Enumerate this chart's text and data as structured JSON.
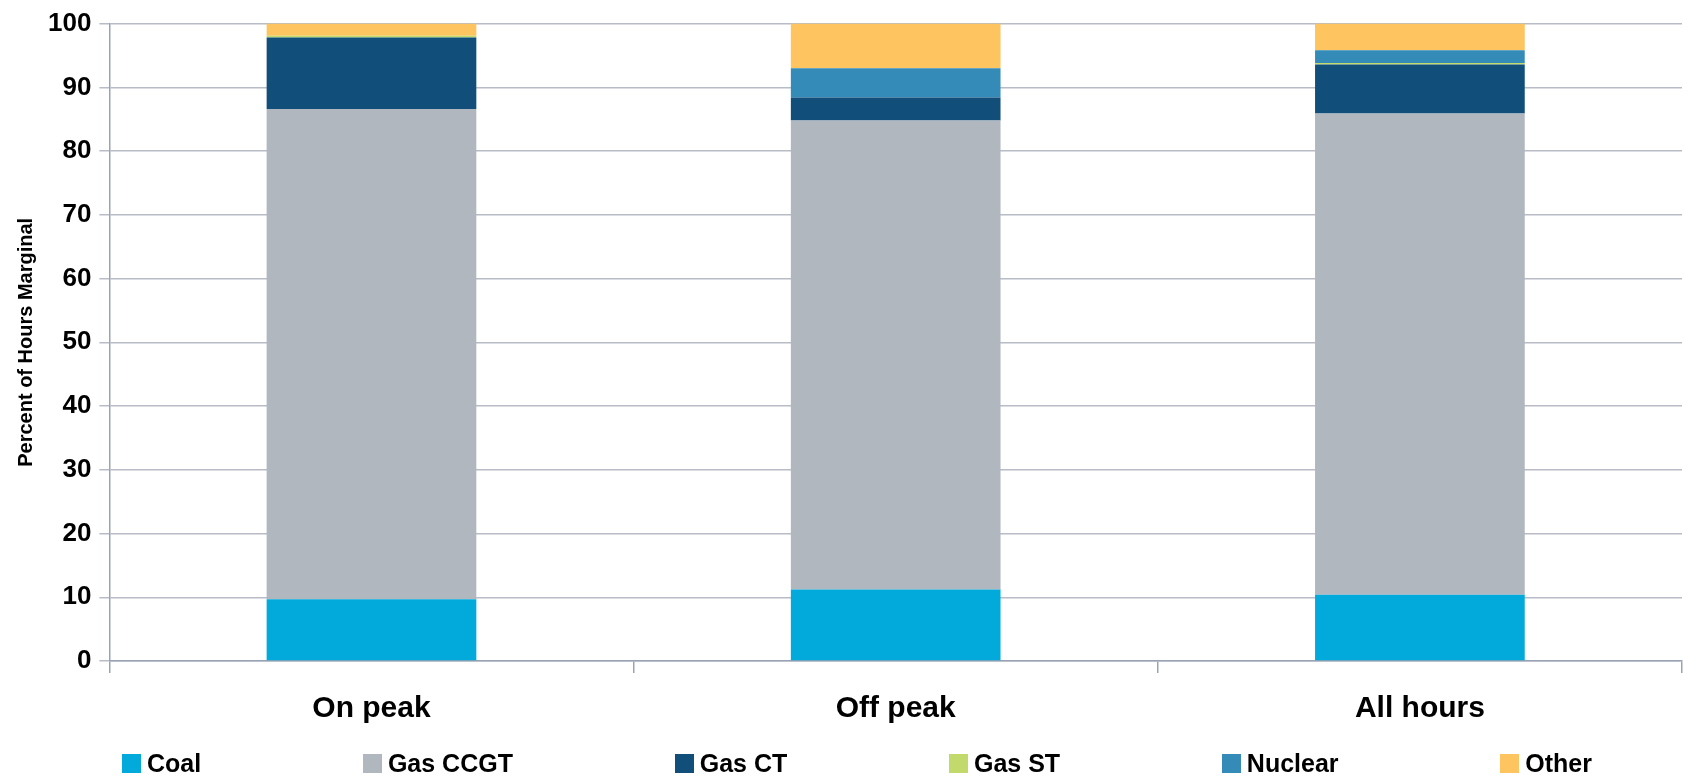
{
  "chart_data": {
    "type": "bar",
    "stacked": true,
    "ylabel": "Percent of Hours Marginal",
    "categories": [
      "On peak",
      "Off peak",
      "All hours"
    ],
    "series": [
      {
        "name": "Coal",
        "color": "#02a9db",
        "values": [
          9.7,
          11.2,
          10.4
        ]
      },
      {
        "name": "Gas CCGT",
        "color": "#b0b7bf",
        "values": [
          76.9,
          73.6,
          75.5
        ]
      },
      {
        "name": "Gas CT",
        "color": "#114e7a",
        "values": [
          11.2,
          3.6,
          7.7
        ]
      },
      {
        "name": "Gas ST",
        "color": "#c2d96b",
        "values": [
          0.3,
          0,
          0.2
        ]
      },
      {
        "name": "Nuclear",
        "color": "#358bb7",
        "values": [
          0,
          4.6,
          2.0
        ]
      },
      {
        "name": "Other",
        "color": "#fdc45f",
        "values": [
          1.9,
          7.0,
          4.2
        ]
      }
    ],
    "ylim": [
      0,
      100
    ],
    "yticks": [
      0,
      10,
      20,
      30,
      40,
      50,
      60,
      70,
      80,
      90,
      100
    ],
    "grid": "y",
    "legend": "bottom"
  }
}
